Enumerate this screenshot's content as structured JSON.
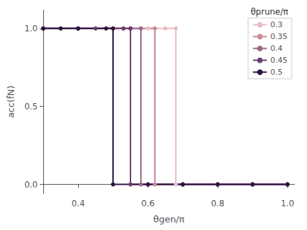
{
  "chart_data": {
    "type": "line",
    "xlabel": "θgen/π",
    "ylabel": "acc(f̂N)",
    "legend_title": "θprune/π",
    "legend": "upper right",
    "grid": false,
    "marker": "circle",
    "xlim": [
      0.3,
      1.02
    ],
    "ylim": [
      -0.06,
      1.12
    ],
    "xticks": [
      0.4,
      0.6,
      0.8,
      {
        "value": 1,
        "label": "1.0"
      }
    ],
    "yticks": [
      {
        "value": 0,
        "label": "0.0"
      },
      0.5,
      {
        "value": 1,
        "label": "1.0"
      }
    ],
    "series": [
      {
        "name": "0.3",
        "color": "#e8bec4",
        "x": [
          0.3,
          0.4,
          0.5,
          0.6,
          0.65,
          0.68,
          0.68,
          0.8,
          0.9,
          1.0
        ],
        "values": [
          1.0,
          1.0,
          1.0,
          1.0,
          1.0,
          1.0,
          0.0,
          0.0,
          0.0,
          0.0
        ]
      },
      {
        "name": "0.35",
        "color": "#c98898",
        "x": [
          0.3,
          0.4,
          0.5,
          0.55,
          0.62,
          0.62,
          0.7,
          0.8,
          0.9,
          1.0
        ],
        "values": [
          1.0,
          1.0,
          1.0,
          1.0,
          1.0,
          0.0,
          0.0,
          0.0,
          0.0,
          0.0
        ]
      },
      {
        "name": "0.4",
        "color": "#9b6888",
        "x": [
          0.3,
          0.4,
          0.5,
          0.55,
          0.58,
          0.58,
          0.7,
          0.8,
          0.9,
          1.0
        ],
        "values": [
          1.0,
          1.0,
          1.0,
          1.0,
          1.0,
          0.0,
          0.0,
          0.0,
          0.0,
          0.0
        ]
      },
      {
        "name": "0.45",
        "color": "#6b3d6e",
        "x": [
          0.3,
          0.4,
          0.45,
          0.53,
          0.55,
          0.55,
          0.6,
          0.7,
          0.8,
          0.9,
          1.0
        ],
        "values": [
          1.0,
          1.0,
          1.0,
          1.0,
          1.0,
          0.0,
          0.0,
          0.0,
          0.0,
          0.0,
          0.0
        ]
      },
      {
        "name": "0.5",
        "color": "#2b1540",
        "x": [
          0.3,
          0.35,
          0.4,
          0.48,
          0.5,
          0.5,
          0.6,
          0.7,
          0.8,
          0.9,
          1.0
        ],
        "values": [
          1.0,
          1.0,
          1.0,
          1.0,
          1.0,
          0.0,
          0.0,
          0.0,
          0.0,
          0.0,
          0.0
        ]
      }
    ]
  }
}
